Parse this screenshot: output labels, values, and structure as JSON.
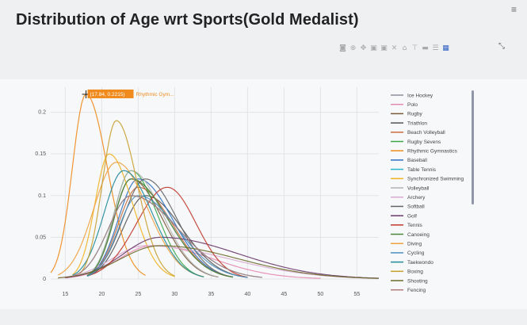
{
  "page": {
    "title": "Distribution of Age wrt Sports(Gold Medalist)"
  },
  "modebar": {
    "icons": [
      "camera-icon",
      "zoom-icon",
      "pan-icon",
      "zoom-in-icon",
      "zoom-out-icon",
      "autoscale-icon",
      "reset-axes-icon",
      "spike-lines-icon",
      "hover-closest-icon",
      "hover-compare-icon",
      "plotly-logo-icon"
    ]
  },
  "hover": {
    "label": "(17.84, 0.2215)",
    "name": "Rhythmic Gym..."
  },
  "chart_data": {
    "type": "line",
    "title": "Distribution of Age wrt Sports(Gold Medalist)",
    "xlabel": "",
    "ylabel": "",
    "xlim": [
      13,
      58
    ],
    "ylim": [
      0,
      0.23
    ],
    "x_ticks": [
      "15",
      "20",
      "25",
      "30",
      "35",
      "40",
      "45",
      "50",
      "55"
    ],
    "y_ticks": [
      "0",
      "0.05",
      "0.1",
      "0.15",
      "0.2"
    ],
    "grid": true,
    "legend_position": "right",
    "series": [
      {
        "name": "Ice Hockey",
        "color": "#8a8fa0",
        "peak": [
          24,
          0.12
        ],
        "range": [
          18,
          38
        ]
      },
      {
        "name": "Polo",
        "color": "#e38ab0",
        "peak": [
          27,
          0.04
        ],
        "range": [
          15,
          50
        ]
      },
      {
        "name": "Rugby",
        "color": "#7a5a3a",
        "peak": [
          24,
          0.12
        ],
        "range": [
          18,
          36
        ]
      },
      {
        "name": "Triathlon",
        "color": "#555555",
        "peak": [
          26,
          0.1
        ],
        "range": [
          18,
          40
        ]
      },
      {
        "name": "Beach Volleyball",
        "color": "#c96a3c",
        "peak": [
          25,
          0.11
        ],
        "range": [
          18,
          38
        ]
      },
      {
        "name": "Rugby Sevens",
        "color": "#3ca84a",
        "peak": [
          24,
          0.13
        ],
        "range": [
          18,
          34
        ]
      },
      {
        "name": "Rhythmic Gymnastics",
        "color": "#f08a1c",
        "peak": [
          17.84,
          0.2215
        ],
        "range": [
          13,
          26
        ]
      },
      {
        "name": "Baseball",
        "color": "#2f6fbf",
        "peak": [
          25,
          0.12
        ],
        "range": [
          18,
          38
        ]
      },
      {
        "name": "Table Tennis",
        "color": "#2bb5c8",
        "peak": [
          24,
          0.1
        ],
        "range": [
          16,
          42
        ]
      },
      {
        "name": "Synchronized Swimming",
        "color": "#f1b320",
        "peak": [
          21,
          0.15
        ],
        "range": [
          16,
          30
        ]
      },
      {
        "name": "Volleyball",
        "color": "#b3b3b3",
        "peak": [
          24,
          0.13
        ],
        "range": [
          18,
          36
        ]
      },
      {
        "name": "Archery",
        "color": "#d8a8d0",
        "peak": [
          26,
          0.04
        ],
        "range": [
          14,
          58
        ]
      },
      {
        "name": "Softball",
        "color": "#666666",
        "peak": [
          26,
          0.12
        ],
        "range": [
          18,
          38
        ]
      },
      {
        "name": "Golf",
        "color": "#6a3a6a",
        "peak": [
          28,
          0.05
        ],
        "range": [
          15,
          58
        ]
      },
      {
        "name": "Tennis",
        "color": "#c0392b",
        "peak": [
          29,
          0.11
        ],
        "range": [
          18,
          40
        ]
      },
      {
        "name": "Canoeing",
        "color": "#4a8a3a",
        "peak": [
          24,
          0.12
        ],
        "range": [
          18,
          38
        ]
      },
      {
        "name": "Diving",
        "color": "#f0a040",
        "peak": [
          22,
          0.14
        ],
        "range": [
          14,
          34
        ]
      },
      {
        "name": "Cycling",
        "color": "#4a90c0",
        "peak": [
          25,
          0.1
        ],
        "range": [
          18,
          40
        ]
      },
      {
        "name": "Taekwondo",
        "color": "#1f8a9a",
        "peak": [
          23,
          0.13
        ],
        "range": [
          16,
          34
        ]
      },
      {
        "name": "Boxing",
        "color": "#c8a030",
        "peak": [
          22,
          0.19
        ],
        "range": [
          17,
          30
        ]
      },
      {
        "name": "Shooting",
        "color": "#6b6b2a",
        "peak": [
          28,
          0.04
        ],
        "range": [
          14,
          58
        ]
      },
      {
        "name": "Fencing",
        "color": "#b07a7a",
        "peak": [
          24,
          0.1
        ],
        "range": [
          16,
          42
        ]
      }
    ]
  }
}
